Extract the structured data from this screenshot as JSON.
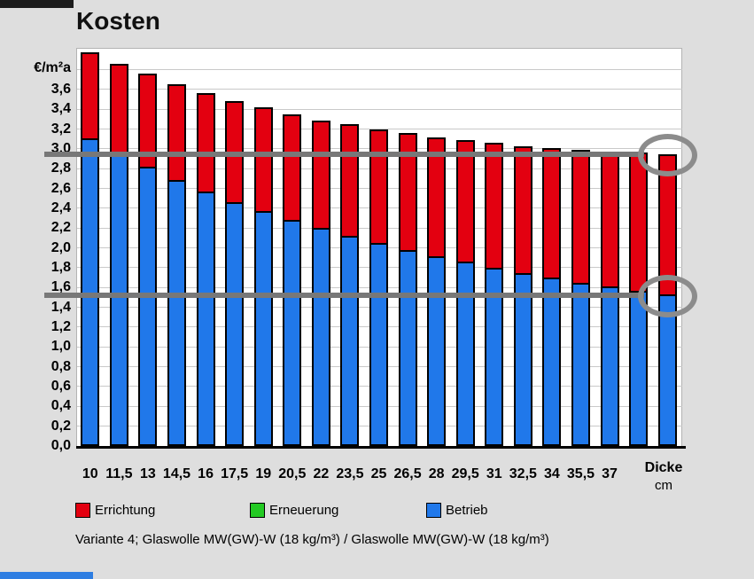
{
  "page": {
    "title": "Kosten",
    "caption": "Variante 4; Glaswolle MW(GW)-W (18 kg/m³) / Glaswolle MW(GW)-W (18 kg/m³)"
  },
  "colors": {
    "background": "#dedede",
    "plot_background": "#ffffff",
    "errichtung": "#e30010",
    "erneuerung": "#23ca23",
    "betrieb": "#2078ea",
    "threshold_line": "#787878",
    "highlight_circle": "#8c8c8c",
    "gridline": "#c9c9c9",
    "top_left_strip": "#1c1c1c",
    "bottom_left_strip": "#2e7ee2"
  },
  "chart_data": {
    "type": "bar",
    "stacked": true,
    "title": "Kosten",
    "y_unit_label": "€/m²a",
    "x_axis_title": "Dicke",
    "x_axis_unit": "cm",
    "categories": [
      "10",
      "11,5",
      "13",
      "14,5",
      "16",
      "17,5",
      "19",
      "20,5",
      "22",
      "23,5",
      "25",
      "26,5",
      "28",
      "29,5",
      "31",
      "32,5",
      "34",
      "35,5",
      "37",
      "",
      ""
    ],
    "series": [
      {
        "name": "Betrieb",
        "color": "#2078ea",
        "values": [
          3.11,
          2.94,
          2.82,
          2.69,
          2.57,
          2.46,
          2.37,
          2.28,
          2.2,
          2.12,
          2.05,
          1.98,
          1.92,
          1.86,
          1.8,
          1.75,
          1.7,
          1.65,
          1.61,
          1.57,
          1.53
        ]
      },
      {
        "name": "Erneuerung",
        "color": "#23ca23",
        "values": [
          0,
          0,
          0,
          0,
          0,
          0,
          0,
          0,
          0,
          0,
          0,
          0,
          0,
          0,
          0,
          0,
          0,
          0,
          0,
          0,
          0
        ]
      },
      {
        "name": "Errichtung",
        "color": "#e30010",
        "values": [
          0.87,
          0.92,
          0.94,
          0.96,
          0.99,
          1.02,
          1.05,
          1.07,
          1.09,
          1.13,
          1.15,
          1.18,
          1.2,
          1.23,
          1.26,
          1.28,
          1.31,
          1.34,
          1.36,
          1.39,
          1.42
        ]
      }
    ],
    "totals": [
      3.98,
      3.86,
      3.76,
      3.65,
      3.56,
      3.48,
      3.42,
      3.35,
      3.29,
      3.25,
      3.2,
      3.16,
      3.12,
      3.09,
      3.06,
      3.03,
      3.01,
      2.99,
      2.97,
      2.96,
      2.95
    ],
    "legend": [
      {
        "label": "Errichtung",
        "color": "#e30010"
      },
      {
        "label": "Erneuerung",
        "color": "#23ca23"
      },
      {
        "label": "Betrieb",
        "color": "#2078ea"
      }
    ],
    "legend_position": "bottom",
    "grid": true,
    "ylim": [
      0,
      4.0
    ],
    "ytick_min": 0,
    "ytick_max": 3.6,
    "ytick_step": 0.2,
    "decimal_separator": ",",
    "threshold_lines": [
      2.95,
      1.52
    ],
    "circled_values": [
      2.95,
      1.52
    ]
  }
}
